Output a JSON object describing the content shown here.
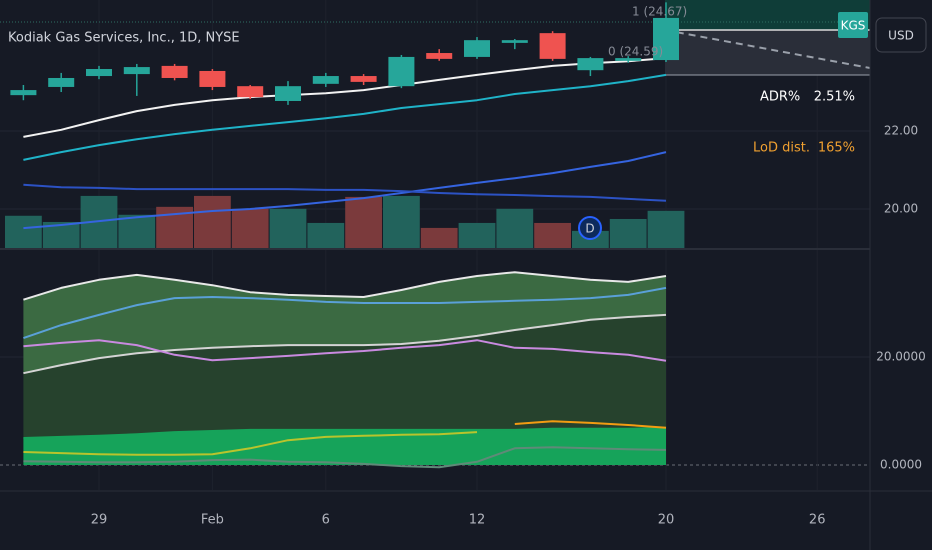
{
  "header": {
    "title": "Kodiak Gas Services, Inc., 1D, NYSE",
    "symbol": "KGS",
    "currency": "USD"
  },
  "fib_labels": [
    "1 (24.67)",
    "0 (24.59)"
  ],
  "stats": {
    "adr_label": "ADR%",
    "adr_value": "2.51%",
    "lod_label": "LoD dist.",
    "lod_value": "165%"
  },
  "event_marker": "D",
  "chart_data": [
    {
      "type": "candlestick",
      "open": [
        22.92,
        23.13,
        23.41,
        23.46,
        23.67,
        23.54,
        23.15,
        22.77,
        23.21,
        23.41,
        23.15,
        24.0,
        23.9,
        24.26,
        24.51,
        23.56,
        23.8,
        23.82,
        null,
        null,
        null,
        null,
        null
      ],
      "high": [
        23.18,
        23.49,
        23.67,
        23.72,
        23.72,
        23.59,
        23.18,
        23.28,
        23.49,
        23.46,
        23.95,
        24.1,
        24.41,
        24.36,
        24.56,
        23.9,
        23.92,
        25.3,
        null,
        null,
        null,
        null,
        null
      ],
      "low": [
        22.79,
        23.0,
        23.33,
        22.9,
        23.3,
        23.05,
        22.82,
        22.67,
        23.13,
        23.18,
        23.1,
        23.8,
        23.85,
        24.1,
        23.8,
        23.41,
        23.75,
        23.77,
        null,
        null,
        null,
        null,
        null
      ],
      "close": [
        23.05,
        23.36,
        23.59,
        23.64,
        23.36,
        23.13,
        22.87,
        23.15,
        23.41,
        23.26,
        23.9,
        23.85,
        24.33,
        24.33,
        23.85,
        23.87,
        23.87,
        24.9,
        null,
        null,
        null,
        null,
        null
      ],
      "up_color": "#26a69a",
      "down_color": "#ef5350",
      "volume": {
        "values": [
          13,
          10.5,
          21,
          13.4,
          16.6,
          21,
          15.8,
          15.8,
          10.1,
          20.6,
          21,
          8.1,
          10.1,
          15.8,
          10.1,
          6.9,
          11.7,
          15,
          null,
          null,
          null,
          null,
          null
        ],
        "up_color": "#22635c",
        "down_color": "#7b3a3c",
        "axis": "y2"
      },
      "series": [
        {
          "color": "#f2f2f2",
          "values": [
            21.85,
            22.03,
            22.28,
            22.51,
            22.67,
            22.79,
            22.87,
            22.92,
            22.97,
            23.05,
            23.18,
            23.31,
            23.44,
            23.56,
            23.67,
            23.74,
            23.79,
            23.87,
            null,
            null,
            null,
            null,
            null
          ]
        },
        {
          "color": "#1fb3c8",
          "values": [
            21.26,
            21.46,
            21.64,
            21.79,
            21.92,
            22.03,
            22.13,
            22.23,
            22.33,
            22.44,
            22.59,
            22.69,
            22.79,
            22.95,
            23.05,
            23.15,
            23.28,
            23.44,
            null,
            null,
            null,
            null,
            null
          ]
        },
        {
          "color": "#3564e0",
          "values": [
            19.51,
            19.59,
            19.69,
            19.79,
            19.87,
            19.95,
            20.0,
            20.08,
            20.18,
            20.28,
            20.41,
            20.54,
            20.67,
            20.79,
            20.92,
            21.08,
            21.23,
            21.46,
            null,
            null,
            null,
            null,
            null
          ]
        },
        {
          "color": "#2c52c4",
          "values": [
            20.62,
            20.56,
            20.54,
            20.51,
            20.51,
            20.51,
            20.51,
            20.51,
            20.49,
            20.49,
            20.46,
            20.41,
            20.38,
            20.36,
            20.33,
            20.31,
            20.26,
            20.21,
            null,
            null,
            null,
            null,
            null
          ]
        }
      ],
      "ylim": [
        19,
        25.36
      ],
      "yticks": [
        {
          "value": 22,
          "label": "22.00"
        },
        {
          "value": 20,
          "label": "20.00"
        }
      ],
      "y2lim": [
        0,
        100
      ],
      "grid": true
    },
    {
      "type": "line",
      "categories": [
        null,
        null,
        "29",
        null,
        null,
        "Feb",
        null,
        null,
        "6",
        null,
        null,
        null,
        "12",
        null,
        null,
        null,
        null,
        "20",
        null,
        null,
        null,
        "26",
        null
      ],
      "series": [
        {
          "color": "#e8e8e8",
          "fill": "#3b6a42",
          "fill_to": 2,
          "values": [
            30.6,
            32.8,
            34.3,
            35.2,
            34.3,
            33.3,
            32.0,
            31.5,
            31.3,
            31.1,
            32.4,
            33.9,
            35.0,
            35.7,
            35.0,
            34.3,
            33.9,
            35.0,
            null,
            null,
            null,
            null,
            null
          ]
        },
        {
          "color": "#5aa0d8",
          "values": [
            23.5,
            25.9,
            27.8,
            29.6,
            30.9,
            31.1,
            30.9,
            30.6,
            30.2,
            30.0,
            30.0,
            30.0,
            30.2,
            30.4,
            30.6,
            30.9,
            31.5,
            32.8,
            null,
            null,
            null,
            null,
            null
          ]
        },
        {
          "color": "#d4d4d4",
          "fill": "#26422d",
          "fill_to": 4,
          "values": [
            17.0,
            18.5,
            19.8,
            20.7,
            21.3,
            21.7,
            22.0,
            22.2,
            22.2,
            22.2,
            22.4,
            23.0,
            23.9,
            25.0,
            25.9,
            26.9,
            27.4,
            27.8,
            null,
            null,
            null,
            null,
            null
          ]
        },
        {
          "color": "#c98ae0",
          "values": [
            22.0,
            22.6,
            23.1,
            22.2,
            20.4,
            19.4,
            19.8,
            20.2,
            20.7,
            21.1,
            21.7,
            22.2,
            23.1,
            21.7,
            21.5,
            20.9,
            20.4,
            19.3,
            null,
            null,
            null,
            null,
            null
          ]
        },
        {
          "color": "#16a35a",
          "fill": "#16a35a",
          "values": [
            5.0,
            5.2,
            5.4,
            5.7,
            6.1,
            6.3,
            6.5,
            6.5,
            6.5,
            6.5,
            6.5,
            6.5,
            6.5,
            6.5,
            6.7,
            6.7,
            6.7,
            6.9,
            null,
            null,
            null,
            null,
            null
          ]
        },
        {
          "color": "#b9c42c",
          "values": [
            2.4,
            2.2,
            2.0,
            1.9,
            1.9,
            2.0,
            3.1,
            4.6,
            5.2,
            5.4,
            5.6,
            5.7,
            6.1,
            null,
            null,
            null,
            null,
            null,
            null,
            null,
            null,
            null,
            null
          ]
        },
        {
          "color": "#f39c12",
          "values": [
            null,
            null,
            null,
            null,
            null,
            null,
            null,
            null,
            null,
            null,
            null,
            null,
            null,
            7.6,
            8.1,
            7.8,
            7.4,
            6.9,
            null,
            null,
            null,
            null,
            null
          ]
        },
        {
          "color": "#5f8a78",
          "values": [
            0.7,
            0.6,
            0.5,
            0.5,
            0.6,
            0.9,
            1.0,
            0.6,
            0.5,
            0.2,
            -0.2,
            -0.4,
            0.6,
            3.1,
            3.3,
            3.1,
            2.9,
            2.8,
            null,
            null,
            null,
            null,
            null
          ]
        }
      ],
      "ylim": [
        -4.63,
        39.81
      ],
      "yticks": [
        {
          "value": 20,
          "label": "20.0000"
        },
        {
          "value": 0,
          "label": "0.0000"
        }
      ],
      "grid": true
    }
  ]
}
